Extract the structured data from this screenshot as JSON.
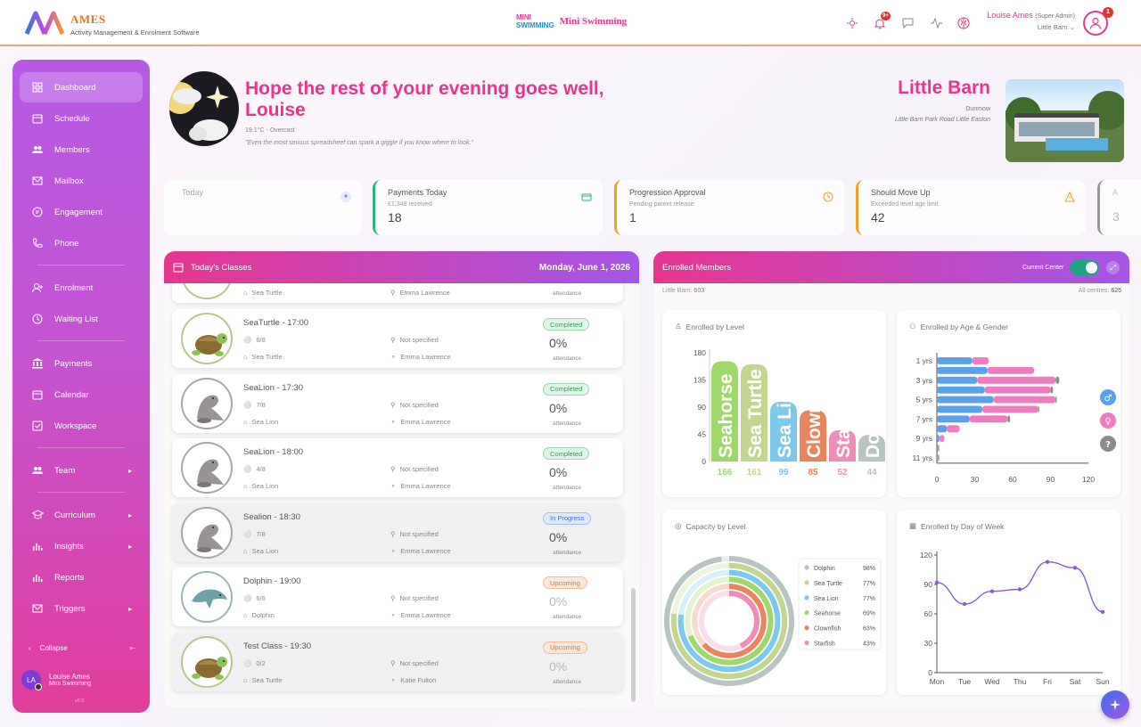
{
  "app": {
    "name": "AMES",
    "subtitle": "Activity Management & Enrolment Software"
  },
  "organisation": {
    "logo_text_top": "MINI",
    "logo_text_bottom": "SWIMMING",
    "name": "Mini Swimming"
  },
  "header": {
    "notifications_badge": "9+",
    "user_name": "Louise Ames",
    "user_role": "(Super Admin)",
    "user_centre": "Little Barn",
    "avatar_badge": "1"
  },
  "sidebar": {
    "items": [
      {
        "label": "Dashboard",
        "icon": "dashboard-icon"
      },
      {
        "label": "Schedule",
        "icon": "calendar-icon"
      },
      {
        "label": "Members",
        "icon": "members-icon"
      },
      {
        "label": "Mailbox",
        "icon": "mail-icon"
      },
      {
        "label": "Engagement",
        "icon": "chat-icon"
      },
      {
        "label": "Phone",
        "icon": "phone-icon"
      },
      {
        "label": "Enrolment",
        "icon": "user-add-icon"
      },
      {
        "label": "Waiting List",
        "icon": "clock-icon"
      },
      {
        "label": "Payments",
        "icon": "bank-icon"
      },
      {
        "label": "Calendar",
        "icon": "calendar-icon"
      },
      {
        "label": "Workspace",
        "icon": "checkbox-icon"
      },
      {
        "label": "Team",
        "icon": "team-icon"
      },
      {
        "label": "Curriculum",
        "icon": "graduation-icon"
      },
      {
        "label": "Insights",
        "icon": "insights-icon"
      },
      {
        "label": "Reports",
        "icon": "reports-icon"
      },
      {
        "label": "Triggers",
        "icon": "mail-icon"
      }
    ],
    "collapse_label": "Collapse",
    "user_initials": "LA",
    "user_name": "Louise Ames",
    "user_org": "Mini Swimming",
    "version": "v0.0"
  },
  "greeting": {
    "line1": "Hope the rest of your evening goes well,",
    "line2": "Louise",
    "weather": "19.1°C - Overcast",
    "quote": "\"Even the most serious spreadsheet can spark a giggle if you know where to look.\""
  },
  "venue": {
    "name": "Little Barn",
    "town": "Dunmow",
    "address": "Little Barn Park Road Little Easton"
  },
  "stats": [
    {
      "label": "Today",
      "sub": "",
      "value": ""
    },
    {
      "label": "Payments Today",
      "sub": "£1,348 received",
      "value": "18"
    },
    {
      "label": "Progression Approval",
      "sub": "Pending parent release",
      "value": "1"
    },
    {
      "label": "Should Move Up",
      "sub": "Exceeded level age limit",
      "value": "42"
    },
    {
      "label": "A",
      "sub": "",
      "value": "3"
    }
  ],
  "classes_panel": {
    "title": "Today's Classes",
    "date": "Monday, June 1, 2026",
    "partial": {
      "level": "Sea Turtle",
      "teacher": "Emma Lawrence",
      "pct": "0%",
      "attendance": "attendance"
    },
    "items": [
      {
        "title": "SeaTurtle - 17:00",
        "count": "6/8",
        "location": "Not specified",
        "level": "Sea Turtle",
        "teacher": "Emma Lawrence",
        "status": "Completed",
        "pct": "0%",
        "attendance": "attendance",
        "animal": "turtle"
      },
      {
        "title": "SeaLion - 17:30",
        "count": "7/8",
        "location": "Not specified",
        "level": "Sea Lion",
        "teacher": "Emma Lawrence",
        "status": "Completed",
        "pct": "0%",
        "attendance": "attendance",
        "animal": "sealion"
      },
      {
        "title": "SeaLion - 18:00",
        "count": "4/8",
        "location": "Not specified",
        "level": "Sea Lion",
        "teacher": "Emma Lawrence",
        "status": "Completed",
        "pct": "0%",
        "attendance": "attendance",
        "animal": "sealion"
      },
      {
        "title": "Sealion - 18:30",
        "count": "7/8",
        "location": "Not specified",
        "level": "Sea Lion",
        "teacher": "Emma Lawrence",
        "status": "In Progress",
        "pct": "0%",
        "attendance": "attendance",
        "animal": "sealion"
      },
      {
        "title": "Dolphin - 19:00",
        "count": "6/6",
        "location": "Not specified",
        "level": "Dolphin",
        "teacher": "Emma Lawrence",
        "status": "Upcoming",
        "pct": "0%",
        "attendance": "attendance",
        "animal": "dolphin"
      },
      {
        "title": "Test Class - 19:30",
        "count": "0/2",
        "location": "Not specified",
        "level": "Sea Turtle",
        "teacher": "Katie Fulton",
        "status": "Upcoming",
        "pct": "0%",
        "attendance": "attendance",
        "animal": "turtle"
      }
    ],
    "status_colors": {
      "Completed": "#2e9e5b",
      "In Progress": "#3d6ff0",
      "Upcoming": "#e8732b"
    }
  },
  "enrolled_panel": {
    "title": "Enrolled Members",
    "toggle_label": "Current Center",
    "centre_label": "Little Barn:",
    "centre_count": "603",
    "all_label": "All centres:",
    "all_count": "625"
  },
  "chart_data": [
    {
      "type": "bar",
      "title": "Enrolled by Level",
      "categories": [
        "Seahorse",
        "Sea Turtle",
        "Sea Lion",
        "Clownfish",
        "Starfish",
        "Dolphin"
      ],
      "values": [
        166,
        161,
        99,
        85,
        52,
        44
      ],
      "colors": [
        "#9fd86a",
        "#c3d690",
        "#7cc9ec",
        "#e8845e",
        "#ee8db5",
        "#b8c4c0"
      ],
      "yticks": [
        "0",
        "45",
        "90",
        "135",
        "180"
      ],
      "ylim": [
        0,
        180
      ]
    },
    {
      "type": "bar",
      "orientation": "horizontal",
      "title": "Enrolled by Age & Gender",
      "categories": [
        "1 yrs",
        "2 yrs",
        "3 yrs",
        "4 yrs",
        "5 yrs",
        "6 yrs",
        "7 yrs",
        "8 yrs",
        "9 yrs",
        "10 yrs",
        "11 yrs"
      ],
      "tick_categories": [
        "1 yrs",
        "3 yrs",
        "5 yrs",
        "7 yrs",
        "9 yrs",
        "11 yrs"
      ],
      "series": [
        {
          "name": "Male",
          "color": "#5aa1ec",
          "values": [
            28,
            40,
            32,
            38,
            45,
            36,
            26,
            8,
            2,
            1,
            1
          ]
        },
        {
          "name": "Female",
          "color": "#ee7cbf",
          "values": [
            13,
            37,
            62,
            52,
            49,
            44,
            30,
            10,
            4,
            1,
            1
          ]
        },
        {
          "name": "Unknown",
          "color": "#8c8c8c",
          "values": [
            0,
            0,
            3,
            2,
            1,
            1,
            2,
            0,
            0,
            0,
            0
          ]
        }
      ],
      "xticks": [
        "0",
        "30",
        "60",
        "90",
        "120"
      ],
      "xlim": [
        0,
        120
      ],
      "legend_icons": [
        {
          "icon": "male-icon",
          "color": "#5aa1ec"
        },
        {
          "icon": "female-icon",
          "color": "#ee7cbf"
        },
        {
          "icon": "question-icon",
          "color": "#8c8c8c"
        }
      ]
    },
    {
      "type": "pie",
      "variant": "nested-rings",
      "title": "Capacity by Level",
      "series": [
        {
          "name": "Dolphin",
          "value": 98,
          "label": "98%",
          "color": "#b8c4c0"
        },
        {
          "name": "Sea Turtle",
          "value": 77,
          "label": "77%",
          "color": "#c3d690"
        },
        {
          "name": "Sea Lion",
          "value": 77,
          "label": "77%",
          "color": "#7cc9ec"
        },
        {
          "name": "Seahorse",
          "value": 69,
          "label": "69%",
          "color": "#9fd86a"
        },
        {
          "name": "Clownfish",
          "value": 63,
          "label": "63%",
          "color": "#e8845e"
        },
        {
          "name": "Starfish",
          "value": 43,
          "label": "43%",
          "color": "#ee8db5"
        }
      ]
    },
    {
      "type": "line",
      "title": "Enrolled by Day of Week",
      "categories": [
        "Mon",
        "Tue",
        "Wed",
        "Thu",
        "Fri",
        "Sat",
        "Sun"
      ],
      "values": [
        92,
        70,
        83,
        85,
        113,
        107,
        62
      ],
      "color": "#8a5ad8",
      "yticks": [
        "0",
        "30",
        "60",
        "90",
        "120"
      ],
      "ylim": [
        0,
        120
      ]
    }
  ]
}
